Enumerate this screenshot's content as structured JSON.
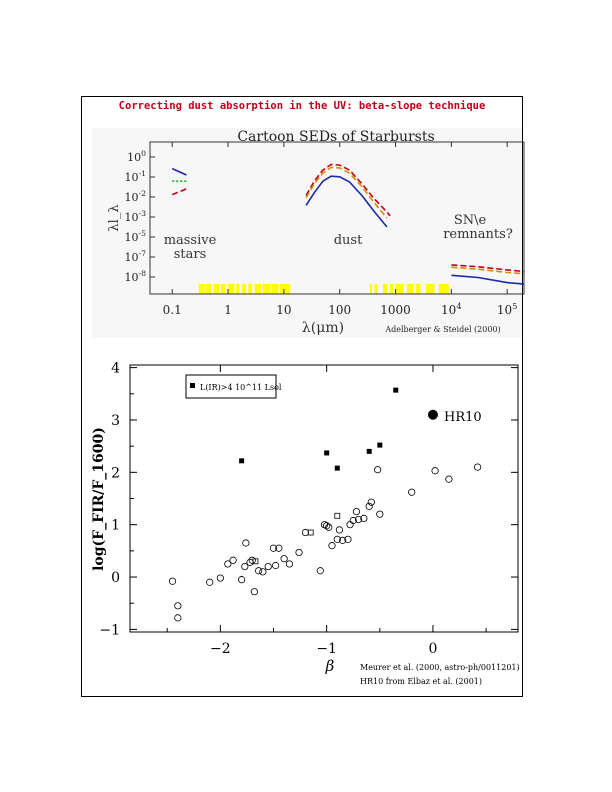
{
  "page": {
    "title": "Correcting dust absorption in the UV: beta-slope technique"
  },
  "chart_data": [
    {
      "type": "line",
      "title": "Cartoon SEDs of Starbursts",
      "xlabel": "λ(μm)",
      "ylabel": "λl_λ",
      "x_scale": "log",
      "y_scale": "log",
      "xlim": [
        0.04,
        200000
      ],
      "ylim": [
        1e-10,
        100.0
      ],
      "x_ticks": [
        "0.1",
        "1",
        "10",
        "100",
        "1000",
        "10^4",
        "10^5"
      ],
      "y_ticks": [
        "10^0",
        "10^-1",
        "10^-2",
        "10^-3",
        "10^-5",
        "10^-7",
        "10^-8"
      ],
      "annotations": [
        "massive stars",
        "dust",
        "SN\\e remnants?"
      ],
      "credit": "Adelberger & Steidel (2000)",
      "colors": {
        "blue": "#1a2aa8",
        "red": "#c0001a",
        "orange": "#d98a00",
        "green": "#14b814",
        "band": "#ffff00"
      },
      "series": [
        {
          "color": "blue",
          "style": "solid",
          "segments": [
            {
              "x": [
                0.1,
                0.18
              ],
              "y": [
                0.8,
                0.25
              ]
            },
            {
              "x": [
                25,
                35,
                50,
                70,
                100,
                150,
                250,
                400,
                700
              ],
              "y": [
                0.001,
                0.01,
                0.08,
                0.2,
                0.18,
                0.07,
                0.006,
                0.0004,
                2e-05
              ]
            },
            {
              "x": [
                10000,
                30000,
                100000,
                200000
              ],
              "y": [
                3e-09,
                2e-09,
                8e-10,
                6e-10
              ]
            }
          ]
        },
        {
          "color": "green",
          "style": "dotted",
          "segments": [
            {
              "x": [
                0.1,
                0.18
              ],
              "y": [
                0.08,
                0.08
              ]
            }
          ]
        },
        {
          "color": "red",
          "style": "dashed",
          "segments": [
            {
              "x": [
                0.1,
                0.18
              ],
              "y": [
                0.007,
                0.02
              ]
            },
            {
              "x": [
                25,
                35,
                50,
                70,
                100,
                150,
                250,
                400,
                700,
                800
              ],
              "y": [
                0.006,
                0.08,
                0.6,
                1.7,
                1.5,
                0.6,
                0.05,
                0.004,
                0.0003,
                0.00015
              ]
            },
            {
              "x": [
                10000,
                30000,
                100000,
                200000
              ],
              "y": [
                2e-08,
                1.4e-08,
                8e-09,
                6e-09
              ]
            }
          ]
        },
        {
          "color": "orange",
          "style": "dashed",
          "segments": [
            {
              "x": [
                25,
                35,
                50,
                70,
                100,
                150,
                250,
                400,
                700
              ],
              "y": [
                0.004,
                0.05,
                0.35,
                1.0,
                0.9,
                0.35,
                0.03,
                0.002,
                0.0001
              ]
            },
            {
              "x": [
                10000,
                30000,
                100000,
                200000
              ],
              "y": [
                1.3e-08,
                9e-09,
                5e-09,
                4e-09
              ]
            }
          ]
        }
      ],
      "band_segments_um": [
        [
          0.3,
          0.38
        ],
        [
          0.39,
          0.5
        ],
        [
          0.55,
          0.7
        ],
        [
          0.75,
          0.9
        ],
        [
          1.0,
          1.3
        ],
        [
          1.4,
          1.6
        ],
        [
          1.8,
          2.1
        ],
        [
          2.3,
          2.7
        ],
        [
          3.0,
          4.0
        ],
        [
          4.2,
          5.8
        ],
        [
          6.0,
          8.0
        ],
        [
          8.5,
          13
        ],
        [
          350,
          380
        ],
        [
          420,
          480
        ],
        [
          600,
          700
        ],
        [
          800,
          900
        ],
        [
          1000,
          1400
        ],
        [
          1600,
          2100
        ],
        [
          2300,
          2800
        ],
        [
          3500,
          5000
        ],
        [
          6000,
          9000
        ]
      ]
    },
    {
      "type": "scatter",
      "xlabel": "β",
      "ylabel": "log(F_FIR/F_1600)",
      "xlim": [
        -2.85,
        0.8
      ],
      "ylim": [
        -1.05,
        4.05
      ],
      "x_ticks": [
        -2,
        -1,
        0
      ],
      "y_ticks": [
        -1,
        0,
        1,
        2,
        3,
        4
      ],
      "legend": {
        "label": "L(IR)>4 10^11 Lsol",
        "placement": "top-left"
      },
      "annotation": "HR10",
      "credits": [
        "Meurer et al. (2000, astro-ph/0011201)",
        "HR10 from Elbaz et al. (2001)"
      ],
      "series": [
        {
          "name": "L(IR)>4 10^11 Lsol",
          "marker": "filled-square",
          "x": [
            -1.8,
            -1.0,
            -0.9,
            -0.6,
            -0.5,
            -0.35
          ],
          "y": [
            2.22,
            2.37,
            2.08,
            2.4,
            2.52,
            3.57
          ]
        },
        {
          "marker": "open-square",
          "x": [
            -1.67,
            -0.9,
            -1.15
          ],
          "y": [
            0.3,
            1.17,
            0.85
          ]
        },
        {
          "marker": "open-circle",
          "x": [
            -2.45,
            -2.4,
            -2.4,
            -2.1,
            -2.0,
            -1.93,
            -1.88,
            -1.8,
            -1.77,
            -1.76,
            -1.72,
            -1.7,
            -1.68,
            -1.64,
            -1.6,
            -1.55,
            -1.5,
            -1.48,
            -1.45,
            -1.4,
            -1.35,
            -1.26,
            -1.2,
            -1.06,
            -1.02,
            -1.0,
            -0.98,
            -0.9,
            -0.88,
            -0.8,
            -0.78,
            -0.75,
            -0.72,
            -0.7,
            -0.65,
            -0.6,
            -0.58,
            -0.52,
            -0.5,
            -0.85,
            -0.95,
            -0.2,
            0.02,
            0.15,
            0.42
          ],
          "y": [
            -0.08,
            -0.55,
            -0.78,
            -0.1,
            -0.02,
            0.25,
            0.32,
            -0.05,
            0.2,
            0.65,
            0.28,
            0.32,
            -0.28,
            0.12,
            0.1,
            0.2,
            0.55,
            0.22,
            0.55,
            0.35,
            0.25,
            0.47,
            0.85,
            0.12,
            1.0,
            0.98,
            0.95,
            0.72,
            0.9,
            0.72,
            1.0,
            1.08,
            1.25,
            1.1,
            1.12,
            1.35,
            1.43,
            2.05,
            1.2,
            0.7,
            0.6,
            1.62,
            2.03,
            1.87,
            2.1
          ]
        },
        {
          "name": "HR10",
          "marker": "big-filled-circle",
          "x": [
            0.0
          ],
          "y": [
            3.1
          ]
        }
      ]
    }
  ]
}
